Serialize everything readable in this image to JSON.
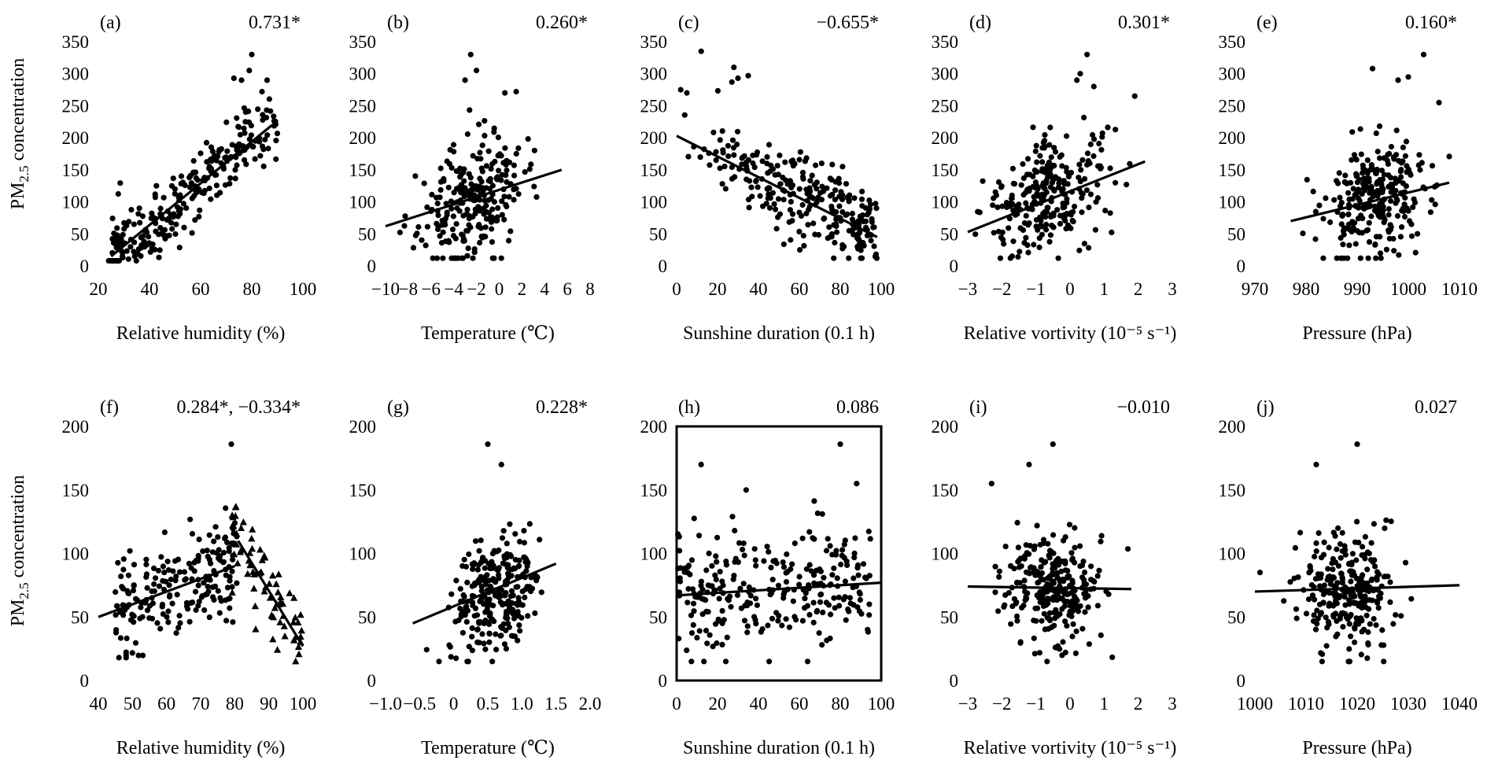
{
  "figure": {
    "ylabel_main": "PM",
    "ylabel_sub": "2.5",
    "ylabel_rest": " concentration"
  },
  "chart_data": [
    {
      "panel": "(a)",
      "corr": "0.731*",
      "type": "scatter",
      "xlabel": "Relative humidity (%)",
      "xlim": [
        20,
        100
      ],
      "xticks": [
        "20",
        "40",
        "60",
        "80",
        "100"
      ],
      "xtick_values": [
        20,
        40,
        60,
        80,
        100
      ],
      "ylim": [
        0,
        350
      ],
      "yticks": [
        "0",
        "50",
        "100",
        "150",
        "200",
        "250",
        "300",
        "350"
      ],
      "ytick_values": [
        0,
        50,
        100,
        150,
        200,
        250,
        300,
        350
      ],
      "fit_lines": [
        [
          [
            25,
            15
          ],
          [
            88,
            220
          ]
        ]
      ],
      "points": "gen",
      "gen": {
        "seed": 11,
        "n": 260,
        "xmin": 24,
        "xmax": 90,
        "a": 15,
        "b": 0,
        "slope": 3.25,
        "x0": 25,
        "noise": 34,
        "ymin": 8,
        "ymax": 330
      },
      "outliers": [
        [
          80,
          330
        ],
        [
          73,
          293
        ],
        [
          76,
          290
        ],
        [
          84,
          272
        ],
        [
          86,
          290
        ],
        [
          79,
          305
        ]
      ]
    },
    {
      "panel": "(b)",
      "corr": "0.260*",
      "type": "scatter",
      "xlabel": "Temperature (℃)",
      "xlim": [
        -10,
        8
      ],
      "xticks": [
        "−10",
        "−8",
        "−6",
        "−4",
        "−2",
        "0",
        "2",
        "4",
        "6",
        "8"
      ],
      "xtick_values": [
        -10,
        -8,
        -6,
        -4,
        -2,
        0,
        2,
        4,
        6,
        8
      ],
      "ylim": [
        0,
        350
      ],
      "yticks": [
        "0",
        "50",
        "100",
        "150",
        "200",
        "250",
        "300",
        "350"
      ],
      "ytick_values": [
        0,
        50,
        100,
        150,
        200,
        250,
        300,
        350
      ],
      "fit_lines": [
        [
          [
            -10,
            62
          ],
          [
            5.5,
            150
          ]
        ]
      ],
      "points": "gen",
      "gen": {
        "seed": 23,
        "n": 260,
        "xmin": -9.5,
        "xmax": 5.8,
        "cx": -2.5,
        "sx": 2.3,
        "a": 100,
        "slope": 5.7,
        "x0": -2.5,
        "noise": 55,
        "ymin": 12,
        "ymax": 330
      },
      "outliers": [
        [
          -2.5,
          330
        ],
        [
          -2,
          305
        ],
        [
          0.5,
          270
        ],
        [
          1.5,
          272
        ],
        [
          -3,
          290
        ]
      ]
    },
    {
      "panel": "(c)",
      "corr": "−0.655*",
      "type": "scatter",
      "xlabel": "Sunshine duration (0.1 h)",
      "xlim": [
        0,
        100
      ],
      "xticks": [
        "0",
        "20",
        "40",
        "60",
        "80",
        "100"
      ],
      "xtick_values": [
        0,
        20,
        40,
        60,
        80,
        100
      ],
      "ylim": [
        0,
        350
      ],
      "yticks": [
        "0",
        "50",
        "100",
        "150",
        "200",
        "250",
        "300",
        "350"
      ],
      "ytick_values": [
        0,
        50,
        100,
        150,
        200,
        250,
        300,
        350
      ],
      "fit_lines": [
        [
          [
            0,
            203
          ],
          [
            98,
            45
          ]
        ]
      ],
      "points": "gen",
      "gen": {
        "seed": 37,
        "n": 270,
        "xmin": 0,
        "xmax": 98,
        "skew": 0.55,
        "a": 203,
        "slope": -1.61,
        "x0": 0,
        "noise": 40,
        "ymin": 12,
        "ymax": 330
      },
      "outliers": [
        [
          12,
          335
        ],
        [
          28,
          310
        ],
        [
          30,
          293
        ],
        [
          35,
          297
        ],
        [
          2,
          275
        ],
        [
          5,
          270
        ],
        [
          27,
          287
        ]
      ]
    },
    {
      "panel": "(d)",
      "corr": "0.301*",
      "type": "scatter",
      "xlabel": "Relative vortivity (10⁻⁵ s⁻¹)",
      "xlim": [
        -3,
        3
      ],
      "xticks": [
        "−3",
        "−2",
        "−1",
        "0",
        "1",
        "2",
        "3"
      ],
      "xtick_values": [
        -3,
        -2,
        -1,
        0,
        1,
        2,
        3
      ],
      "ylim": [
        0,
        350
      ],
      "yticks": [
        "0",
        "50",
        "100",
        "150",
        "200",
        "250",
        "300",
        "350"
      ],
      "ytick_values": [
        0,
        50,
        100,
        150,
        200,
        250,
        300,
        350
      ],
      "fit_lines": [
        [
          [
            -3,
            53
          ],
          [
            2.2,
            163
          ]
        ]
      ],
      "points": "gen",
      "gen": {
        "seed": 41,
        "n": 270,
        "xmin": -2.9,
        "xmax": 2.3,
        "cx": -0.6,
        "sx": 0.9,
        "a": 100,
        "slope": 21,
        "x0": -1.2,
        "noise": 50,
        "ymin": 12,
        "ymax": 330
      },
      "outliers": [
        [
          0.5,
          330
        ],
        [
          0.3,
          300
        ],
        [
          0.2,
          290
        ],
        [
          0.7,
          280
        ],
        [
          1.9,
          265
        ]
      ]
    },
    {
      "panel": "(e)",
      "corr": "0.160*",
      "type": "scatter",
      "xlabel": "Pressure (hPa)",
      "xlim": [
        970,
        1010
      ],
      "xticks": [
        "970",
        "980",
        "990",
        "1000",
        "1010"
      ],
      "xtick_values": [
        970,
        980,
        990,
        1000,
        1010
      ],
      "ylim": [
        0,
        350
      ],
      "yticks": [
        "0",
        "50",
        "100",
        "150",
        "200",
        "250",
        "300",
        "350"
      ],
      "ytick_values": [
        0,
        50,
        100,
        150,
        200,
        250,
        300,
        350
      ],
      "fit_lines": [
        [
          [
            977,
            70
          ],
          [
            1008,
            130
          ]
        ]
      ],
      "points": "gen",
      "gen": {
        "seed": 53,
        "n": 270,
        "xmin": 977,
        "xmax": 1008,
        "cx": 994,
        "sx": 5.5,
        "a": 100,
        "slope": 1.9,
        "x0": 992.5,
        "noise": 55,
        "ymin": 12,
        "ymax": 330
      },
      "outliers": [
        [
          1003,
          330
        ],
        [
          993,
          308
        ],
        [
          998,
          290
        ],
        [
          1000,
          295
        ],
        [
          1006,
          255
        ]
      ]
    },
    {
      "panel": "(f)",
      "corr": "0.284*, −0.334*",
      "type": "scatter",
      "xlabel": "Relative humidity (%)",
      "xlim": [
        40,
        100
      ],
      "xticks": [
        "40",
        "50",
        "60",
        "70",
        "80",
        "90",
        "100"
      ],
      "xtick_values": [
        40,
        50,
        60,
        70,
        80,
        90,
        100
      ],
      "ylim": [
        0,
        200
      ],
      "yticks": [
        "0",
        "50",
        "100",
        "150",
        "200"
      ],
      "ytick_values": [
        0,
        50,
        100,
        150,
        200
      ],
      "fit_lines": [
        [
          [
            40,
            50
          ],
          [
            80,
            90
          ]
        ],
        [
          [
            81,
            110
          ],
          [
            100,
            27
          ]
        ]
      ],
      "points": "gen",
      "gen": {
        "seed": 67,
        "n": 200,
        "xmin": 45,
        "xmax": 81,
        "a": 50,
        "slope": 1.0,
        "x0": 40,
        "noise": 22,
        "ymin": 18,
        "ymax": 185
      },
      "gen2": {
        "seed": 71,
        "n": 75,
        "xmin": 78,
        "xmax": 100,
        "a": 110,
        "slope": -4.37,
        "x0": 81,
        "noise": 22,
        "ymin": 15,
        "ymax": 170
      },
      "outliers": [
        [
          79,
          186
        ]
      ]
    },
    {
      "panel": "(g)",
      "corr": "0.228*",
      "type": "scatter",
      "xlabel": "Temperature (℃)",
      "xlim": [
        -1.0,
        2.0
      ],
      "xticks": [
        "−1.0",
        "−0.5",
        "0",
        "0.5",
        "1.0",
        "1.5",
        "2.0"
      ],
      "xtick_values": [
        -1.0,
        -0.5,
        0,
        0.5,
        1.0,
        1.5,
        2.0
      ],
      "ylim": [
        0,
        200
      ],
      "yticks": [
        "0",
        "50",
        "100",
        "150",
        "200"
      ],
      "ytick_values": [
        0,
        50,
        100,
        150,
        200
      ],
      "fit_lines": [
        [
          [
            -0.6,
            45
          ],
          [
            1.5,
            92
          ]
        ]
      ],
      "points": "gen",
      "gen": {
        "seed": 79,
        "n": 270,
        "xmin": -0.7,
        "xmax": 1.5,
        "cx": 0.6,
        "sx": 0.32,
        "a": 68,
        "slope": 22,
        "x0": 0.55,
        "noise": 26,
        "ymin": 15,
        "ymax": 185
      },
      "outliers": [
        [
          0.5,
          186
        ],
        [
          0.7,
          170
        ]
      ]
    },
    {
      "panel": "(h)",
      "corr": "0.086",
      "type": "scatter",
      "xlabel": "Sunshine duration (0.1 h)",
      "xlim": [
        0,
        100
      ],
      "xticks": [
        "0",
        "20",
        "40",
        "60",
        "80",
        "100"
      ],
      "xtick_values": [
        0,
        20,
        40,
        60,
        80,
        100
      ],
      "ylim": [
        0,
        200
      ],
      "yticks": [
        "0",
        "50",
        "100",
        "150",
        "200"
      ],
      "ytick_values": [
        0,
        50,
        100,
        150,
        200
      ],
      "fit_lines": [
        [
          [
            0,
            67
          ],
          [
            100,
            77
          ]
        ]
      ],
      "boxed": true,
      "points": "gen",
      "gen": {
        "seed": 83,
        "n": 270,
        "xmin": 0,
        "xmax": 95,
        "a": 70,
        "slope": 0.08,
        "x0": 0,
        "noise": 27,
        "ymin": 15,
        "ymax": 185
      },
      "outliers": [
        [
          80,
          186
        ],
        [
          12,
          170
        ],
        [
          34,
          150
        ],
        [
          88,
          155
        ]
      ]
    },
    {
      "panel": "(i)",
      "corr": "−0.010",
      "type": "scatter",
      "xlabel": "Relative vortivity (10⁻⁵ s⁻¹)",
      "xlim": [
        -3,
        3
      ],
      "xticks": [
        "−3",
        "−2",
        "−1",
        "0",
        "1",
        "2",
        "3"
      ],
      "xtick_values": [
        -3,
        -2,
        -1,
        0,
        1,
        2,
        3
      ],
      "ylim": [
        0,
        200
      ],
      "yticks": [
        "0",
        "50",
        "100",
        "150",
        "200"
      ],
      "ytick_values": [
        0,
        50,
        100,
        150,
        200
      ],
      "fit_lines": [
        [
          [
            -3,
            74
          ],
          [
            1.8,
            72
          ]
        ]
      ],
      "points": "gen",
      "gen": {
        "seed": 97,
        "n": 270,
        "xmin": -2.8,
        "xmax": 1.8,
        "cx": -0.6,
        "sx": 0.75,
        "a": 73,
        "slope": 0,
        "x0": 0,
        "noise": 27,
        "ymin": 15,
        "ymax": 185
      },
      "outliers": [
        [
          -0.5,
          186
        ],
        [
          -1.2,
          170
        ],
        [
          -2.3,
          155
        ]
      ]
    },
    {
      "panel": "(j)",
      "corr": "0.027",
      "type": "scatter",
      "xlabel": "Pressure (hPa)",
      "xlim": [
        1000,
        1040
      ],
      "xticks": [
        "1000",
        "1010",
        "1020",
        "1030",
        "1040"
      ],
      "xtick_values": [
        1000,
        1010,
        1020,
        1030,
        1040
      ],
      "ylim": [
        0,
        200
      ],
      "yticks": [
        "0",
        "50",
        "100",
        "150",
        "200"
      ],
      "ytick_values": [
        0,
        50,
        100,
        150,
        200
      ],
      "fit_lines": [
        [
          [
            1000,
            70
          ],
          [
            1040,
            75
          ]
        ]
      ],
      "points": "gen",
      "gen": {
        "seed": 101,
        "n": 270,
        "xmin": 1001,
        "xmax": 1032,
        "cx": 1018,
        "sx": 4.5,
        "a": 72,
        "slope": 0.1,
        "x0": 1018,
        "noise": 27,
        "ymin": 15,
        "ymax": 185
      },
      "outliers": [
        [
          1020,
          186
        ],
        [
          1012,
          170
        ],
        [
          1001,
          85
        ]
      ]
    }
  ]
}
